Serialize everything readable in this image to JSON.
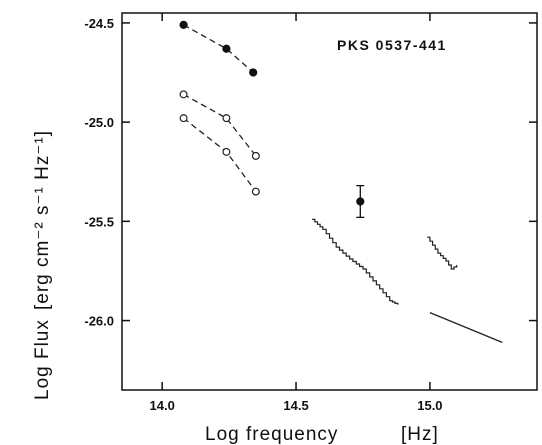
{
  "chart_data": {
    "type": "scatter",
    "title": "PKS 0537-441",
    "xlabel": "Log frequency",
    "xunit": "[Hz]",
    "ylabel": "Log Flux",
    "yunit": "[erg cm⁻² s⁻¹ Hz⁻¹]",
    "xlim": [
      13.85,
      15.4
    ],
    "ylim": [
      -26.35,
      -24.45
    ],
    "xticks": [
      14.0,
      14.5,
      15.0
    ],
    "xtick_labels": [
      "14.0",
      "14.5",
      "15.0"
    ],
    "yticks": [
      -24.5,
      -25.0,
      -25.5,
      -26.0
    ],
    "ytick_labels": [
      "-24.5",
      "-25.0",
      "-25.5",
      "-26.0"
    ],
    "grid": false,
    "series": [
      {
        "marker": "filled-circle",
        "line": "dashed",
        "x": [
          14.08,
          14.24,
          14.34
        ],
        "y": [
          -24.51,
          -24.63,
          -24.75
        ]
      },
      {
        "marker": "open-circle",
        "line": "dashed",
        "x": [
          14.08,
          14.24,
          14.35
        ],
        "y": [
          -24.86,
          -24.98,
          -25.17
        ]
      },
      {
        "marker": "open-circle",
        "line": "dashed",
        "x": [
          14.08,
          14.24,
          14.35
        ],
        "y": [
          -24.98,
          -25.15,
          -25.35
        ]
      },
      {
        "marker": "filled-circle-errorbar",
        "line": "none",
        "x": [
          14.74
        ],
        "y": [
          -25.4
        ],
        "y_err": [
          0.08
        ]
      },
      {
        "marker": "none",
        "line": "step",
        "x": [
          14.56,
          14.6,
          14.65,
          14.7,
          14.75,
          14.8,
          14.85,
          14.88
        ],
        "y": [
          -25.49,
          -25.54,
          -25.63,
          -25.69,
          -25.74,
          -25.82,
          -25.9,
          -25.92
        ]
      },
      {
        "marker": "none",
        "line": "step",
        "x": [
          14.99,
          15.03,
          15.06,
          15.08,
          15.1
        ],
        "y": [
          -25.58,
          -25.66,
          -25.7,
          -25.74,
          -25.72
        ]
      },
      {
        "marker": "none",
        "line": "solid",
        "x": [
          15.0,
          15.27
        ],
        "y": [
          -25.96,
          -26.11
        ]
      }
    ]
  }
}
